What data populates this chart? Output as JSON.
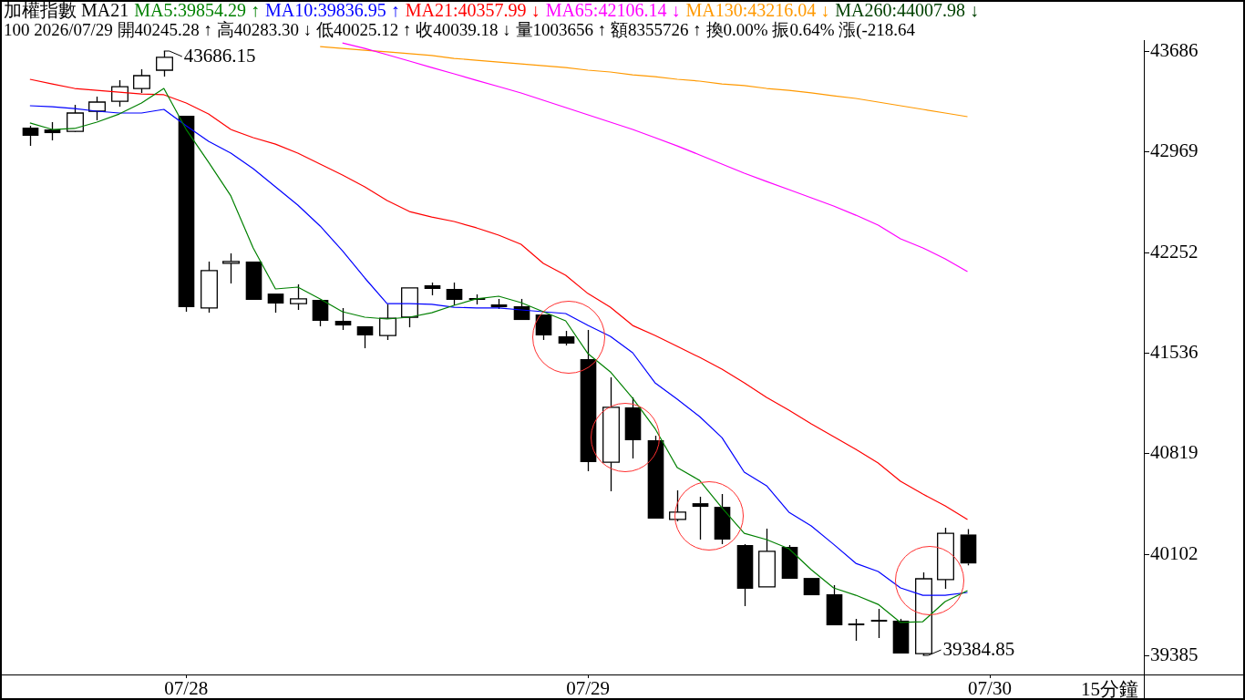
{
  "chart_data": {
    "type": "candlestick",
    "title": "加權指數 MA21",
    "subtitle": "100 2026/07/29 開40245.28 ↑ 高40283.30 ↓ 低40025.12 ↑ 收40039.18 ↓ 量1003656 ↑ 額8355726 ↑ 換0.00% 振0.64% 漲(-218.64",
    "legend": "top left",
    "categories": [
      null,
      null,
      null,
      null,
      null,
      null,
      null,
      "07/28",
      null,
      null,
      null,
      null,
      null,
      null,
      null,
      null,
      null,
      null,
      null,
      null,
      null,
      null,
      null,
      null,
      null,
      "07/29",
      null,
      null,
      null,
      null,
      null,
      null,
      null,
      null,
      null,
      null,
      null,
      null,
      null,
      null,
      null,
      null,
      null,
      "07/30"
    ],
    "ohlc": [
      [
        43141,
        43154,
        43011,
        43083
      ],
      [
        43128,
        43180,
        43050,
        43102
      ],
      [
        43115,
        43303,
        43110,
        43245
      ],
      [
        43258,
        43362,
        43193,
        43323
      ],
      [
        43329,
        43478,
        43290,
        43433
      ],
      [
        43420,
        43556,
        43388,
        43511
      ],
      [
        43550,
        43686.15,
        43504,
        43641
      ],
      [
        43225,
        43225,
        41831,
        41863
      ],
      [
        41857,
        42188,
        41824,
        42123
      ],
      [
        42175,
        42246,
        42032,
        42188
      ],
      [
        42188,
        42188,
        41915,
        41915
      ],
      [
        41960,
        41960,
        41824,
        41889
      ],
      [
        41889,
        42025,
        41844,
        41922
      ],
      [
        41915,
        41915,
        41727,
        41766
      ],
      [
        41766,
        41857,
        41701,
        41733
      ],
      [
        41727,
        41727,
        41571,
        41662
      ],
      [
        41662,
        41883,
        41630,
        41785
      ],
      [
        41792,
        42000,
        41720,
        42000
      ],
      [
        42019,
        42038,
        41947,
        41993
      ],
      [
        41993,
        42038,
        41876,
        41915
      ],
      [
        41928,
        41954,
        41883,
        41915
      ],
      [
        41883,
        41922,
        41850,
        41863
      ],
      [
        41870,
        41922,
        41772,
        41772
      ],
      [
        41811,
        41811,
        41630,
        41662
      ],
      [
        41656,
        41695,
        41591,
        41604
      ],
      [
        41493,
        41701,
        40696,
        40760
      ],
      [
        40760,
        41364,
        40553,
        41150
      ],
      [
        41150,
        41221,
        40786,
        40916
      ],
      [
        40916,
        40948,
        40358,
        40358
      ],
      [
        40352,
        40559,
        40339,
        40404
      ],
      [
        40468,
        40514,
        40209,
        40442
      ],
      [
        40442,
        40533,
        40176,
        40209
      ],
      [
        40170,
        40176,
        39735,
        39859
      ],
      [
        39872,
        40287,
        39872,
        40125
      ],
      [
        40157,
        40170,
        39930,
        39930
      ],
      [
        39936,
        39936,
        39813,
        39813
      ],
      [
        39820,
        39885,
        39599,
        39599
      ],
      [
        39612,
        39645,
        39489,
        39599
      ],
      [
        39638,
        39716,
        39508,
        39632
      ],
      [
        39632,
        39645,
        39398,
        39398
      ],
      [
        39398,
        39975,
        39384.85,
        39930
      ],
      [
        39924,
        40293,
        39859,
        40254
      ],
      [
        40245.28,
        40283.3,
        40025.12,
        40039.18
      ],
      null
    ],
    "series": [
      {
        "name": "MA5:39854.29 ↑",
        "type": "line",
        "color": "#008000",
        "values": [
          43174,
          43128,
          43135,
          43180,
          43238,
          43316,
          43420,
          43128,
          42895,
          42655,
          42285,
          41993,
          42006,
          41922,
          41831,
          41792,
          41779,
          41792,
          41824,
          41876,
          41922,
          41941,
          41896,
          41831,
          41766,
          41532,
          41403,
          41215,
          41000,
          40721,
          40630,
          40436,
          40254,
          40209,
          40144,
          39995,
          39865,
          39813,
          39748,
          39619,
          39625,
          39768,
          39846,
          null
        ]
      },
      {
        "name": "MA10:39836.95 ↑",
        "type": "line",
        "color": "#0000ff",
        "values": [
          43297,
          43290,
          43277,
          43258,
          43245,
          43245,
          43271,
          43154,
          43044,
          42960,
          42849,
          42720,
          42590,
          42441,
          42265,
          42071,
          41889,
          41889,
          41883,
          41863,
          41857,
          41857,
          41844,
          41831,
          41818,
          41733,
          41656,
          41539,
          41325,
          41208,
          41085,
          40935,
          40689,
          40592,
          40404,
          40306,
          40176,
          40040,
          39982,
          39865,
          39813,
          39813,
          39833,
          null
        ]
      },
      {
        "name": "MA21:40357.99 ↓",
        "type": "line",
        "color": "#ff0000",
        "values": [
          43485,
          43452,
          43420,
          43407,
          43394,
          43381,
          43375,
          43316,
          43238,
          43128,
          43070,
          43024,
          42960,
          42882,
          42804,
          42720,
          42622,
          42544,
          42505,
          42473,
          42428,
          42376,
          42311,
          42175,
          42090,
          41960,
          41863,
          41733,
          41662,
          41584,
          41506,
          41422,
          41325,
          41221,
          41130,
          41033,
          40942,
          40851,
          40754,
          40624,
          40533,
          40449,
          40352,
          null
        ]
      },
      {
        "name": "MA65:42106.14 ↓",
        "type": "line",
        "color": "#ff00ff",
        "values": [
          null,
          null,
          null,
          null,
          null,
          null,
          null,
          null,
          null,
          null,
          null,
          null,
          null,
          null,
          43744,
          43705,
          43660,
          43615,
          43569,
          43524,
          43478,
          43433,
          43388,
          43336,
          43284,
          43232,
          43180,
          43128,
          43070,
          43011,
          42947,
          42882,
          42817,
          42758,
          42700,
          42642,
          42583,
          42518,
          42447,
          42350,
          42285,
          42207,
          42116,
          null
        ]
      },
      {
        "name": "MA130:43216.04 ↓",
        "type": "line",
        "color": "#ff9900",
        "values": [
          null,
          null,
          null,
          null,
          null,
          null,
          null,
          null,
          null,
          null,
          null,
          null,
          null,
          43718,
          43705,
          43692,
          43680,
          43667,
          43654,
          43634,
          43621,
          43608,
          43595,
          43582,
          43569,
          43550,
          43537,
          43517,
          43504,
          43485,
          43472,
          43452,
          43440,
          43420,
          43407,
          43388,
          43368,
          43349,
          43323,
          43297,
          43271,
          43245,
          43219,
          null
        ]
      },
      {
        "name": "MA260:44007.98 ↓",
        "type": "line",
        "color": "#004000",
        "values": [
          null,
          null,
          null,
          null,
          null,
          null,
          null,
          null,
          null,
          null,
          null,
          null,
          null,
          null,
          null,
          null,
          null,
          null,
          null,
          null,
          null,
          null,
          null,
          null,
          null,
          null,
          null,
          null,
          null,
          null,
          null,
          null,
          null,
          null,
          null,
          null,
          null,
          null,
          null,
          null,
          null,
          null,
          null,
          null
        ]
      }
    ],
    "ylim": [
      39249,
      43764
    ],
    "yticks": [
      39385,
      40102,
      40819,
      41536,
      42252,
      42969,
      43686
    ],
    "annotations": [
      "43686.15",
      "39384.85",
      "15分鐘"
    ]
  }
}
